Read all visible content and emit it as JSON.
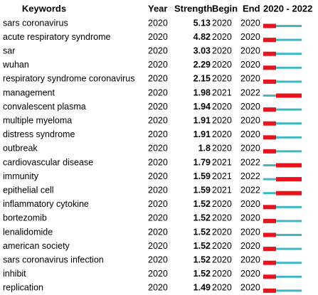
{
  "table": {
    "header": [
      "Keywords",
      "Year",
      "Strength",
      "Begin",
      "End",
      "2020 - 2022"
    ],
    "rows": [
      {
        "keyword": "sars coronavirus",
        "year": 2020,
        "strength": 5.13,
        "begin": 2020,
        "end": 2020
      },
      {
        "keyword": "acute respiratory syndrome",
        "year": 2020,
        "strength": 4.82,
        "begin": 2020,
        "end": 2020
      },
      {
        "keyword": "sar",
        "year": 2020,
        "strength": 3.03,
        "begin": 2020,
        "end": 2020
      },
      {
        "keyword": "wuhan",
        "year": 2020,
        "strength": 2.29,
        "begin": 2020,
        "end": 2020
      },
      {
        "keyword": "respiratory syndrome coronavirus",
        "year": 2020,
        "strength": 2.15,
        "begin": 2020,
        "end": 2020
      },
      {
        "keyword": "management",
        "year": 2020,
        "strength": 1.98,
        "begin": 2021,
        "end": 2022
      },
      {
        "keyword": "convalescent plasma",
        "year": 2020,
        "strength": 1.94,
        "begin": 2020,
        "end": 2020
      },
      {
        "keyword": "multiple myeloma",
        "year": 2020,
        "strength": 1.91,
        "begin": 2020,
        "end": 2020
      },
      {
        "keyword": "distress syndrome",
        "year": 2020,
        "strength": 1.91,
        "begin": 2020,
        "end": 2020
      },
      {
        "keyword": "outbreak",
        "year": 2020,
        "strength": 1.8,
        "begin": 2020,
        "end": 2020
      },
      {
        "keyword": "cardiovascular disease",
        "year": 2020,
        "strength": 1.79,
        "begin": 2021,
        "end": 2022
      },
      {
        "keyword": "immunity",
        "year": 2020,
        "strength": 1.59,
        "begin": 2021,
        "end": 2022
      },
      {
        "keyword": "epithelial cell",
        "year": 2020,
        "strength": 1.59,
        "begin": 2021,
        "end": 2022
      },
      {
        "keyword": "inflammatory cytokine",
        "year": 2020,
        "strength": 1.52,
        "begin": 2020,
        "end": 2020
      },
      {
        "keyword": "bortezomib",
        "year": 2020,
        "strength": 1.52,
        "begin": 2020,
        "end": 2020
      },
      {
        "keyword": "lenalidomide",
        "year": 2020,
        "strength": 1.52,
        "begin": 2020,
        "end": 2020
      },
      {
        "keyword": "american society",
        "year": 2020,
        "strength": 1.52,
        "begin": 2020,
        "end": 2020
      },
      {
        "keyword": "sars coronavirus infection",
        "year": 2020,
        "strength": 1.52,
        "begin": 2020,
        "end": 2020
      },
      {
        "keyword": "inhibit",
        "year": 2020,
        "strength": 1.52,
        "begin": 2020,
        "end": 2020
      },
      {
        "keyword": "replication",
        "year": 2020,
        "strength": 1.49,
        "begin": 2020,
        "end": 2020
      }
    ]
  }
}
